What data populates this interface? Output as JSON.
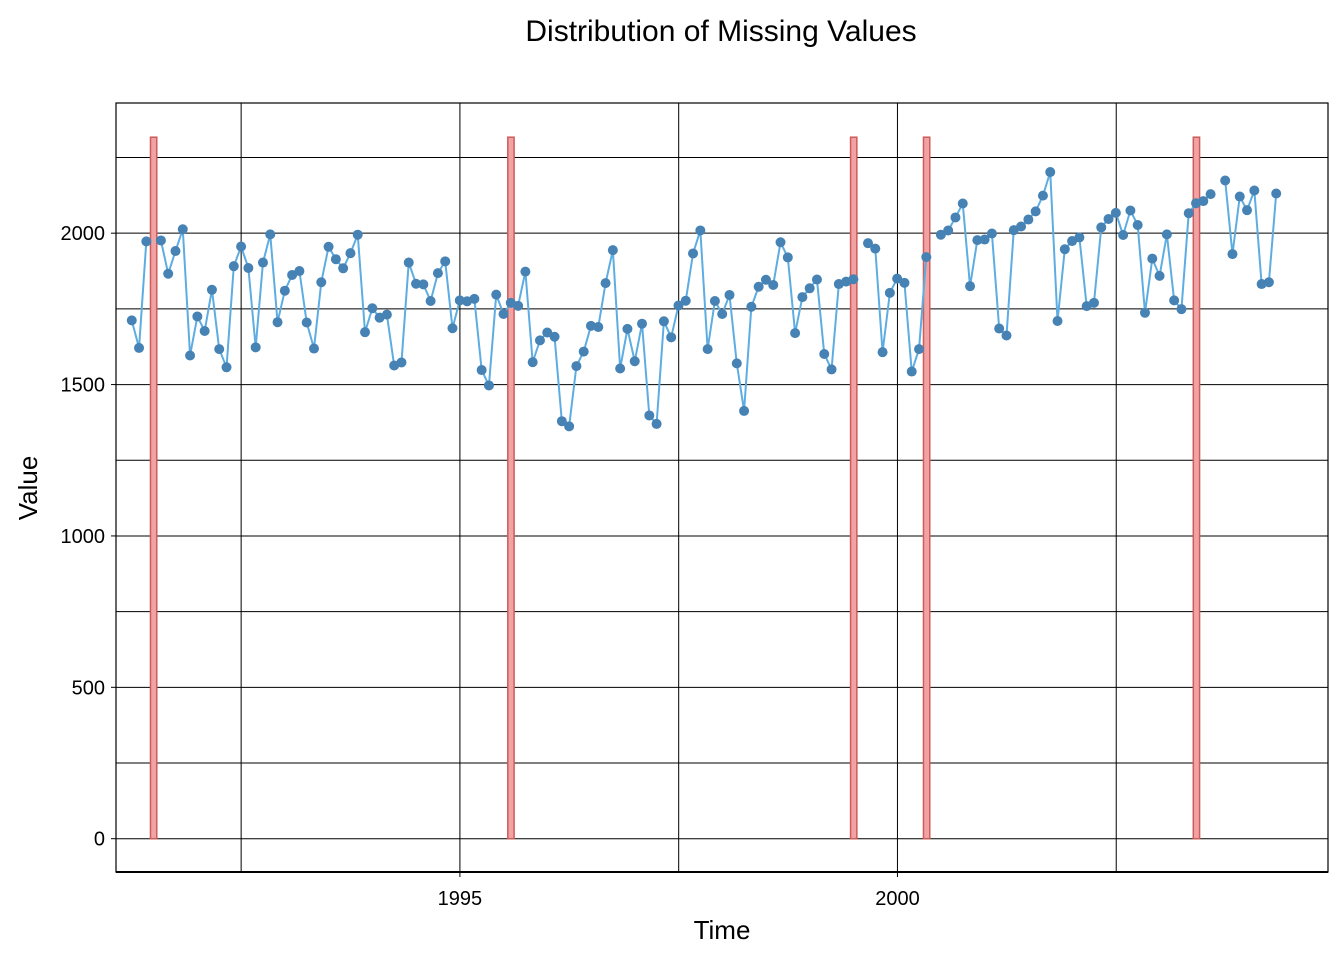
{
  "chart_data": {
    "type": "line",
    "title": "Distribution of Missing Values",
    "xlabel": "Time",
    "ylabel": "Value",
    "xlim": [
      1991.07,
      2004.92
    ],
    "ylim": [
      -110,
      2430
    ],
    "x_ticks": [
      {
        "value": 1995,
        "label": "1995"
      },
      {
        "value": 2000,
        "label": "2000"
      }
    ],
    "x_minor_grid": [
      1992.5,
      1997.5,
      2002.5
    ],
    "y_ticks": [
      {
        "value": 0,
        "label": "0"
      },
      {
        "value": 500,
        "label": "500"
      },
      {
        "value": 1000,
        "label": "1000"
      },
      {
        "value": 1500,
        "label": "1500"
      },
      {
        "value": 2000,
        "label": "2000"
      }
    ],
    "y_minor_grid": [
      250,
      750,
      1250,
      1750,
      2250
    ],
    "grid": true,
    "series": [
      {
        "kind": "line+points",
        "color": "#5dade2",
        "point_color": "#4682b4",
        "x_start": 1991.25,
        "x_step": 0.0833,
        "values": [
          1712,
          1621,
          1973,
          null,
          1976,
          1866,
          1941,
          2013,
          1596,
          1725,
          1677,
          1813,
          1617,
          1557,
          1891,
          1956,
          1885,
          1623,
          1903,
          1996,
          1706,
          1810,
          1862,
          1875,
          1705,
          1619,
          1838,
          1955,
          1914,
          1884,
          1934,
          1995,
          1673,
          1752,
          1721,
          1731,
          1563,
          1573,
          1903,
          1833,
          1831,
          1776,
          1868,
          1907,
          1686,
          1778,
          1775,
          1783,
          1548,
          1497,
          1797,
          1733,
          1770,
          1760,
          1873,
          1574,
          1646,
          1672,
          1658,
          1379,
          1362,
          1561,
          1609,
          1694,
          1690,
          1835,
          1944,
          1553,
          1684,
          1577,
          1701,
          1398,
          1370,
          1709,
          1656,
          1761,
          1777,
          1933,
          2009,
          1617,
          1776,
          1733,
          1796,
          1570,
          1413,
          1757,
          1823,
          1846,
          1829,
          1970,
          1920,
          1670,
          1789,
          1818,
          1847,
          1601,
          1550,
          1832,
          1840,
          1848,
          null,
          1967,
          1949,
          1607,
          1803,
          1850,
          1836,
          1543,
          1617,
          1921,
          null,
          1995,
          2009,
          2052,
          2098,
          1825,
          1977,
          1979,
          1999,
          1685,
          1662,
          2010,
          2022,
          2045,
          2072,
          2124,
          2202,
          1710,
          1947,
          1974,
          1986,
          1759,
          1770,
          2019,
          2047,
          2067,
          1994,
          2075,
          2027,
          1737,
          1916,
          1859,
          1996,
          1778,
          1749,
          2066,
          2099,
          2106,
          2129,
          null,
          2174,
          1931,
          2121,
          2076,
          2141,
          1832,
          1838,
          2131
        ]
      }
    ],
    "missing_bars": {
      "color": "#f1a2a2",
      "border_color": "#cd5c5c",
      "height": 2317,
      "width_years": 0.0833,
      "x": [
        1991.5,
        1995.5833,
        1999.5,
        2000.3333,
        2003.4167
      ]
    }
  }
}
